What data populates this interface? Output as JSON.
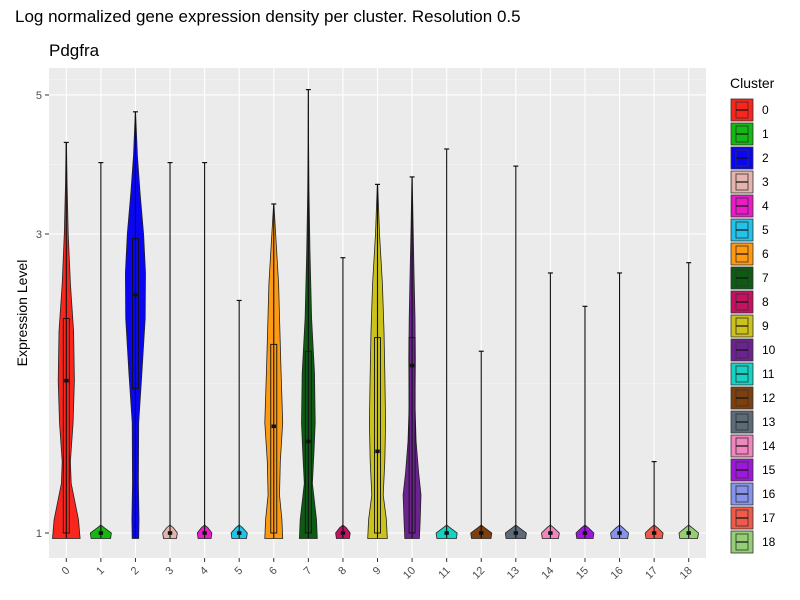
{
  "chart_data": {
    "type": "violin",
    "title": "Log normalized gene expression density per cluster. Resolution 0.5",
    "subtitle": "Pdgfra",
    "xlabel": "",
    "ylabel": "Expression Level",
    "y_ticks": [
      1,
      3,
      5
    ],
    "ylim": [
      0.9,
      5.6
    ],
    "y_scale": "log",
    "grid": true,
    "legend": {
      "title": "Cluster",
      "position": "right"
    },
    "categories": [
      "0",
      "1",
      "2",
      "3",
      "4",
      "5",
      "6",
      "7",
      "8",
      "9",
      "10",
      "11",
      "12",
      "13",
      "14",
      "15",
      "16",
      "17",
      "18"
    ],
    "colors": [
      "#F8261C",
      "#13B812",
      "#0A06F0",
      "#E3B5AE",
      "#EA1CC9",
      "#23C2E8",
      "#FD9A12",
      "#0E5B14",
      "#C41162",
      "#CBC21C",
      "#6C2390",
      "#15D2C2",
      "#7E3F0F",
      "#5D6A78",
      "#F185BE",
      "#9E17DC",
      "#8693EA",
      "#EF5A4B",
      "#94CF76"
    ],
    "series": [
      {
        "cluster": "0",
        "max": 4.2,
        "q1": 1.0,
        "median": 1.75,
        "q3": 2.2,
        "density": [
          [
            0.98,
            0.85
          ],
          [
            1.05,
            0.75
          ],
          [
            1.2,
            0.3
          ],
          [
            1.3,
            0.25
          ],
          [
            1.5,
            0.42
          ],
          [
            1.75,
            0.5
          ],
          [
            2.1,
            0.45
          ],
          [
            2.5,
            0.25
          ],
          [
            3.0,
            0.12
          ],
          [
            3.6,
            0.05
          ],
          [
            4.2,
            0.01
          ]
        ]
      },
      {
        "cluster": "1",
        "max": 3.9,
        "q1": 1.0,
        "median": 1.0,
        "q3": 1.0,
        "density": [
          [
            0.98,
            0.6
          ],
          [
            1.0,
            0.65
          ],
          [
            1.02,
            0.2
          ],
          [
            1.03,
            0.0
          ]
        ]
      },
      {
        "cluster": "2",
        "max": 4.7,
        "q1": 1.7,
        "median": 2.4,
        "q3": 2.95,
        "density": [
          [
            0.98,
            0.2
          ],
          [
            1.05,
            0.22
          ],
          [
            1.2,
            0.18
          ],
          [
            1.5,
            0.2
          ],
          [
            1.8,
            0.4
          ],
          [
            2.2,
            0.6
          ],
          [
            2.6,
            0.62
          ],
          [
            3.0,
            0.5
          ],
          [
            3.5,
            0.28
          ],
          [
            4.0,
            0.12
          ],
          [
            4.7,
            0.01
          ]
        ]
      },
      {
        "cluster": "3",
        "max": 3.9,
        "q1": 1.0,
        "median": 1.0,
        "q3": 1.0,
        "density": [
          [
            0.98,
            0.4
          ],
          [
            1.0,
            0.45
          ],
          [
            1.02,
            0.2
          ],
          [
            1.03,
            0.0
          ]
        ]
      },
      {
        "cluster": "4",
        "max": 3.9,
        "q1": 1.0,
        "median": 1.0,
        "q3": 1.0,
        "density": [
          [
            0.98,
            0.4
          ],
          [
            1.0,
            0.45
          ],
          [
            1.02,
            0.2
          ],
          [
            1.03,
            0.0
          ]
        ]
      },
      {
        "cluster": "5",
        "max": 2.35,
        "q1": 1.0,
        "median": 1.0,
        "q3": 1.0,
        "density": [
          [
            0.98,
            0.45
          ],
          [
            1.0,
            0.5
          ],
          [
            1.02,
            0.2
          ],
          [
            1.03,
            0.0
          ]
        ]
      },
      {
        "cluster": "6",
        "max": 3.35,
        "q1": 1.0,
        "median": 1.48,
        "q3": 2.0,
        "density": [
          [
            0.98,
            0.55
          ],
          [
            1.05,
            0.5
          ],
          [
            1.15,
            0.35
          ],
          [
            1.3,
            0.4
          ],
          [
            1.5,
            0.55
          ],
          [
            1.8,
            0.45
          ],
          [
            2.1,
            0.38
          ],
          [
            2.5,
            0.3
          ],
          [
            2.9,
            0.15
          ],
          [
            3.35,
            0.01
          ]
        ]
      },
      {
        "cluster": "7",
        "max": 5.1,
        "q1": 1.0,
        "median": 1.4,
        "q3": 1.95,
        "density": [
          [
            0.98,
            0.55
          ],
          [
            1.05,
            0.5
          ],
          [
            1.2,
            0.25
          ],
          [
            1.35,
            0.35
          ],
          [
            1.5,
            0.42
          ],
          [
            1.8,
            0.38
          ],
          [
            2.2,
            0.2
          ],
          [
            2.8,
            0.1
          ],
          [
            3.5,
            0.04
          ],
          [
            4.2,
            0.015
          ],
          [
            5.1,
            0.003
          ]
        ]
      },
      {
        "cluster": "8",
        "max": 2.75,
        "q1": 1.0,
        "median": 1.0,
        "q3": 1.0,
        "density": [
          [
            0.98,
            0.4
          ],
          [
            1.0,
            0.45
          ],
          [
            1.02,
            0.2
          ],
          [
            1.03,
            0.0
          ]
        ]
      },
      {
        "cluster": "9",
        "max": 3.6,
        "q1": 1.0,
        "median": 1.35,
        "q3": 2.05,
        "density": [
          [
            0.98,
            0.6
          ],
          [
            1.05,
            0.55
          ],
          [
            1.15,
            0.35
          ],
          [
            1.3,
            0.45
          ],
          [
            1.5,
            0.5
          ],
          [
            1.8,
            0.45
          ],
          [
            2.1,
            0.4
          ],
          [
            2.5,
            0.3
          ],
          [
            3.0,
            0.12
          ],
          [
            3.6,
            0.01
          ]
        ]
      },
      {
        "cluster": "10",
        "max": 3.7,
        "q1": 1.0,
        "median": 1.85,
        "q3": 2.05,
        "density": [
          [
            0.98,
            0.45
          ],
          [
            1.05,
            0.5
          ],
          [
            1.15,
            0.55
          ],
          [
            1.25,
            0.4
          ],
          [
            1.4,
            0.25
          ],
          [
            1.6,
            0.18
          ],
          [
            1.9,
            0.2
          ],
          [
            2.2,
            0.18
          ],
          [
            2.6,
            0.12
          ],
          [
            3.1,
            0.06
          ],
          [
            3.7,
            0.01
          ]
        ]
      },
      {
        "cluster": "11",
        "max": 4.1,
        "q1": 1.0,
        "median": 1.0,
        "q3": 1.0,
        "density": [
          [
            0.98,
            0.6
          ],
          [
            1.0,
            0.65
          ],
          [
            1.02,
            0.2
          ],
          [
            1.03,
            0.0
          ]
        ]
      },
      {
        "cluster": "12",
        "max": 1.95,
        "q1": 1.0,
        "median": 1.0,
        "q3": 1.0,
        "density": [
          [
            0.98,
            0.6
          ],
          [
            1.0,
            0.65
          ],
          [
            1.02,
            0.2
          ],
          [
            1.03,
            0.0
          ]
        ]
      },
      {
        "cluster": "13",
        "max": 3.85,
        "q1": 1.0,
        "median": 1.0,
        "q3": 1.0,
        "density": [
          [
            0.98,
            0.6
          ],
          [
            1.0,
            0.65
          ],
          [
            1.02,
            0.2
          ],
          [
            1.03,
            0.0
          ]
        ]
      },
      {
        "cluster": "14",
        "max": 2.6,
        "q1": 1.0,
        "median": 1.0,
        "q3": 1.0,
        "density": [
          [
            0.98,
            0.5
          ],
          [
            1.0,
            0.55
          ],
          [
            1.02,
            0.2
          ],
          [
            1.03,
            0.0
          ]
        ]
      },
      {
        "cluster": "15",
        "max": 2.3,
        "q1": 1.0,
        "median": 1.0,
        "q3": 1.0,
        "density": [
          [
            0.98,
            0.5
          ],
          [
            1.0,
            0.55
          ],
          [
            1.02,
            0.2
          ],
          [
            1.03,
            0.0
          ]
        ]
      },
      {
        "cluster": "16",
        "max": 2.6,
        "q1": 1.0,
        "median": 1.0,
        "q3": 1.0,
        "density": [
          [
            0.98,
            0.5
          ],
          [
            1.0,
            0.55
          ],
          [
            1.02,
            0.2
          ],
          [
            1.03,
            0.0
          ]
        ]
      },
      {
        "cluster": "17",
        "max": 1.3,
        "q1": 1.0,
        "median": 1.0,
        "q3": 1.0,
        "density": [
          [
            0.98,
            0.5
          ],
          [
            1.0,
            0.55
          ],
          [
            1.02,
            0.2
          ],
          [
            1.03,
            0.0
          ]
        ]
      },
      {
        "cluster": "18",
        "max": 2.7,
        "q1": 1.0,
        "median": 1.0,
        "q3": 1.0,
        "density": [
          [
            0.98,
            0.55
          ],
          [
            1.0,
            0.6
          ],
          [
            1.02,
            0.2
          ],
          [
            1.03,
            0.0
          ]
        ]
      }
    ]
  }
}
